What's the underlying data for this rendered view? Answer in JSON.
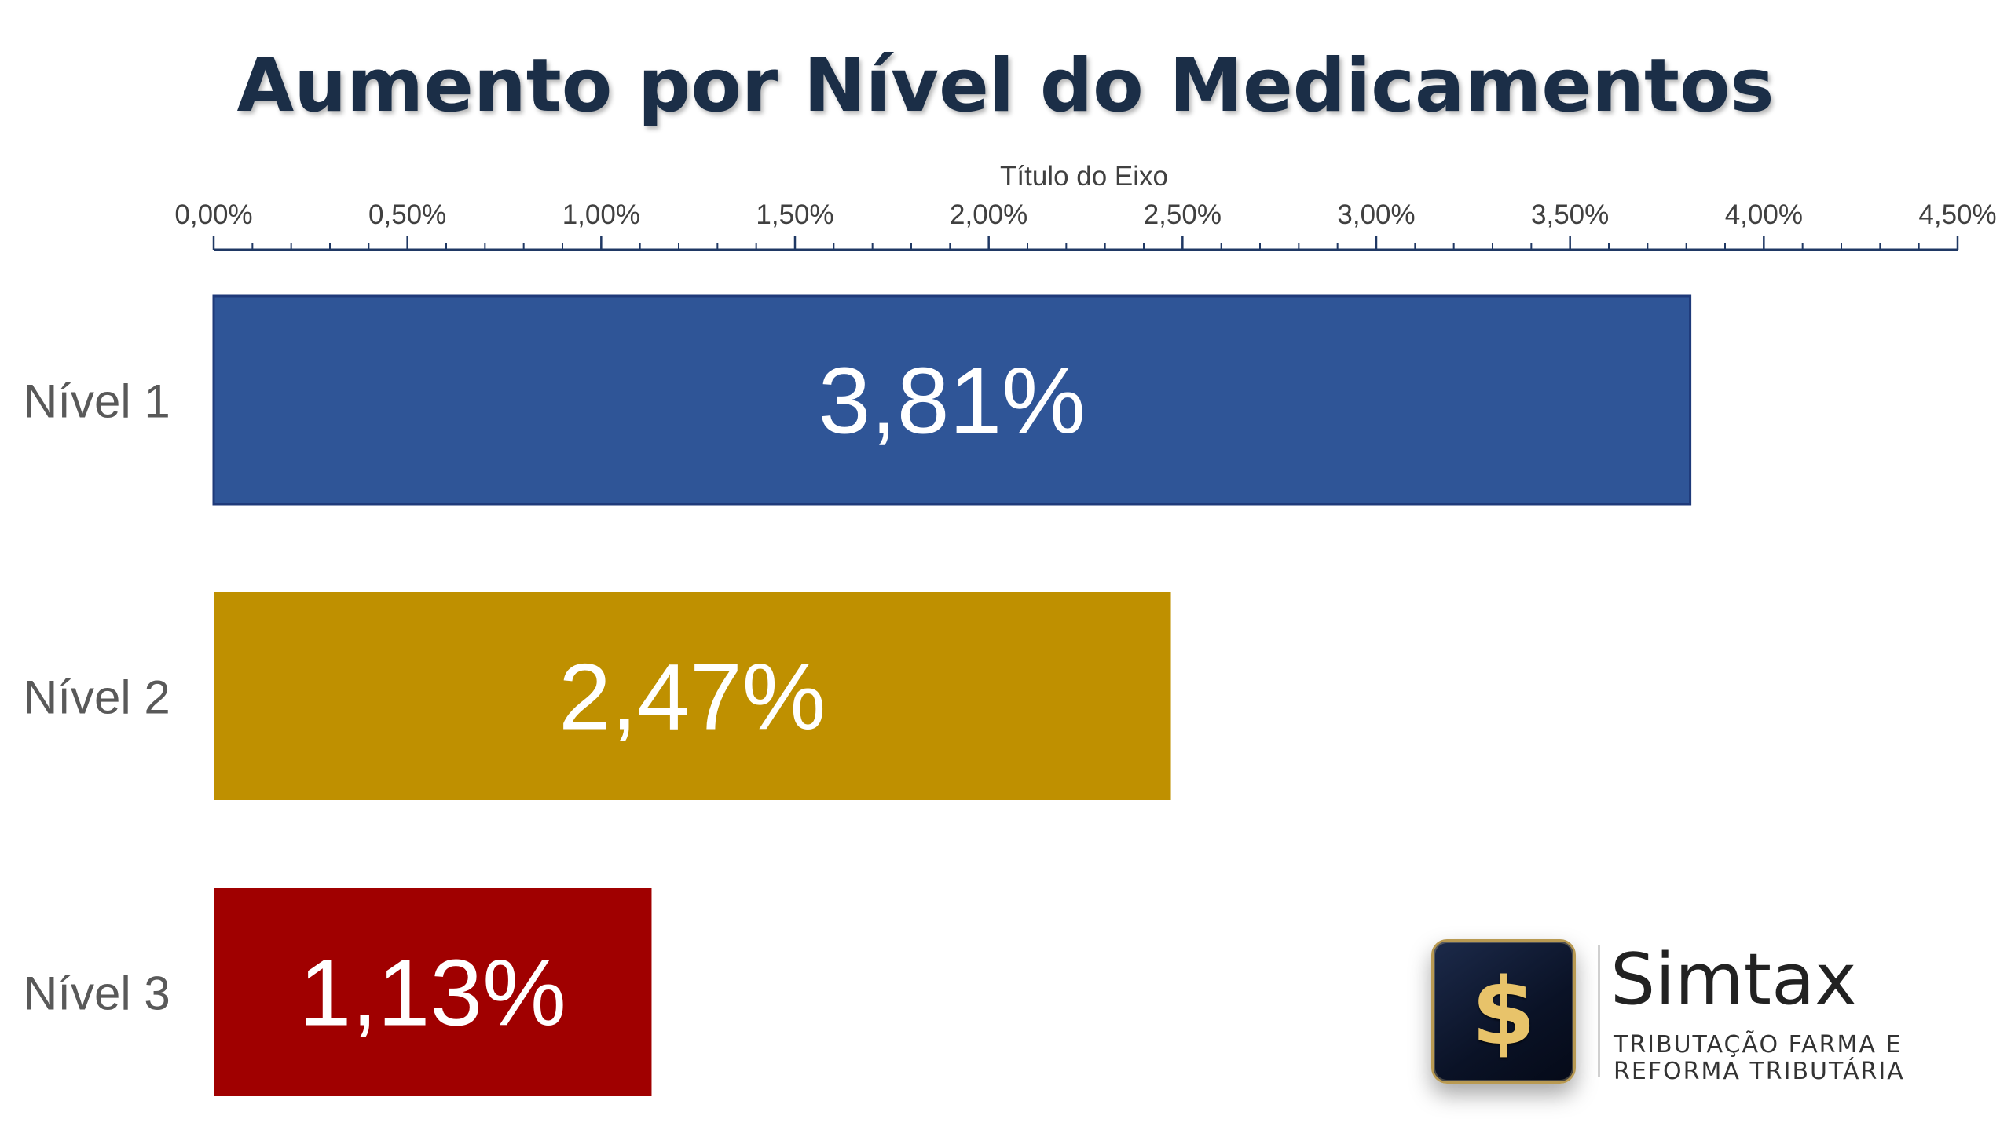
{
  "chart_data": {
    "type": "bar",
    "orientation": "horizontal",
    "title": "Aumento por Nível do Medicamentos",
    "xlabel": "Título do Eixo",
    "ylabel": "",
    "axis_position": "top",
    "xlim": [
      0,
      4.5
    ],
    "xticks": [
      0,
      0.5,
      1,
      1.5,
      2,
      2.5,
      3,
      3.5,
      4,
      4.5
    ],
    "xtick_labels": [
      "0,00%",
      "0,50%",
      "1,00%",
      "1,50%",
      "2,00%",
      "2,50%",
      "3,00%",
      "3,50%",
      "4,00%",
      "4,50%"
    ],
    "categories": [
      "Nível 1",
      "Nível 2",
      "Nível 3"
    ],
    "values": [
      3.81,
      2.47,
      1.13
    ],
    "data_labels": [
      "3,81%",
      "2,47%",
      "1,13%"
    ],
    "colors": [
      "#2f5597",
      "#bf9000",
      "#a00000"
    ],
    "grid": false,
    "legend": "none"
  },
  "logo": {
    "icon": "dollar-sign-icon",
    "symbol": "$",
    "name": "Simtax",
    "tagline_line1": "TRIBUTAÇÃO FARMA E",
    "tagline_line2": "REFORMA TRIBUTÁRIA",
    "accent_color": "#e8c36a"
  }
}
